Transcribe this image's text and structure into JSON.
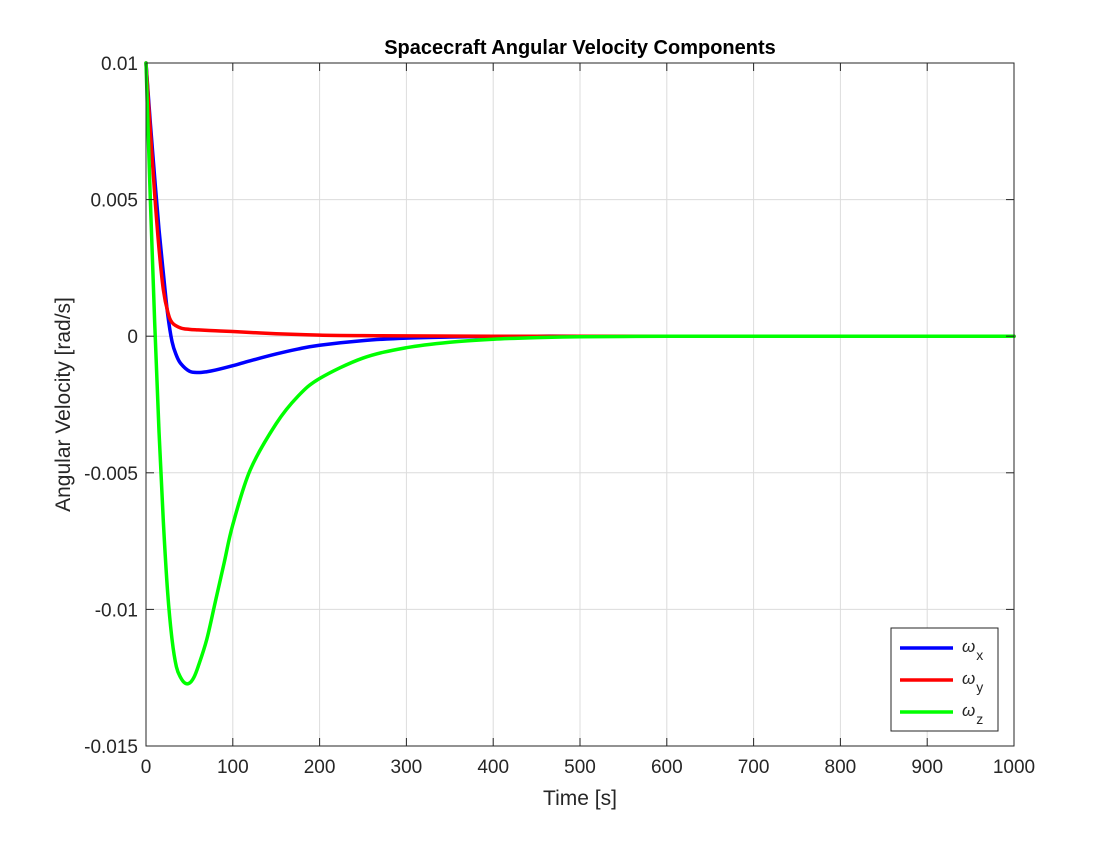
{
  "chart_data": {
    "type": "line",
    "title": "Spacecraft Angular Velocity Components",
    "xlabel": "Time [s]",
    "ylabel": "Angular Velocity [rad/s]",
    "xlim": [
      0,
      1000
    ],
    "ylim": [
      -0.015,
      0.01
    ],
    "x_ticks": [
      0,
      100,
      200,
      300,
      400,
      500,
      600,
      700,
      800,
      900,
      1000
    ],
    "x_tick_labels": [
      "0",
      "100",
      "200",
      "300",
      "400",
      "500",
      "600",
      "700",
      "800",
      "900",
      "1000"
    ],
    "y_ticks": [
      -0.015,
      -0.01,
      -0.005,
      0,
      0.005,
      0.01
    ],
    "y_tick_labels": [
      "-0.015",
      "-0.01",
      "-0.005",
      "0",
      "0.005",
      "0.01"
    ],
    "grid": true,
    "legend_position": "bottom-right",
    "series": [
      {
        "name": "ω",
        "subscript": "x",
        "color": "#0000ff",
        "x": [
          0,
          5,
          10,
          15,
          20,
          25,
          30,
          35,
          40,
          50,
          60,
          70,
          80,
          100,
          120,
          150,
          175,
          200,
          250,
          300,
          350,
          400,
          450,
          500,
          600,
          700,
          800,
          900,
          1000
        ],
        "y": [
          0.01,
          0.0078,
          0.0058,
          0.0039,
          0.0023,
          0.0008,
          -0.0002,
          -0.0007,
          -0.001,
          -0.00128,
          -0.00133,
          -0.0013,
          -0.00124,
          -0.00108,
          -0.0009,
          -0.00065,
          -0.00047,
          -0.00033,
          -0.00016,
          -7e-05,
          -3e-05,
          -1e-05,
          0,
          0,
          0,
          0,
          0,
          0,
          0
        ]
      },
      {
        "name": "ω",
        "subscript": "y",
        "color": "#ff0000",
        "x": [
          0,
          5,
          10,
          15,
          20,
          25,
          30,
          40,
          50,
          60,
          80,
          100,
          150,
          200,
          250,
          300,
          400,
          500,
          600,
          700,
          800,
          900,
          1000
        ],
        "y": [
          0.01,
          0.0075,
          0.0052,
          0.0032,
          0.0017,
          0.0009,
          0.0005,
          0.0003,
          0.00025,
          0.00023,
          0.0002,
          0.00017,
          9e-05,
          4e-05,
          2e-05,
          1e-05,
          0,
          0,
          0,
          0,
          0,
          0,
          0
        ]
      },
      {
        "name": "ω",
        "subscript": "z",
        "color": "#00ff00",
        "x": [
          0,
          5,
          10,
          15,
          20,
          25,
          30,
          35,
          40,
          45,
          50,
          55,
          60,
          70,
          80,
          90,
          100,
          120,
          150,
          175,
          200,
          250,
          300,
          350,
          400,
          450,
          500,
          550,
          600,
          700,
          800,
          900,
          1000
        ],
        "y": [
          0.01,
          0.005,
          0.0005,
          -0.0035,
          -0.0068,
          -0.0094,
          -0.0111,
          -0.0121,
          -0.0125,
          -0.0127,
          -0.0127,
          -0.0125,
          -0.0121,
          -0.0111,
          -0.0097,
          -0.0083,
          -0.0069,
          -0.0049,
          -0.0032,
          -0.0022,
          -0.00155,
          -0.0008,
          -0.00042,
          -0.00022,
          -0.00011,
          -5e-05,
          -2e-05,
          -1e-05,
          0,
          0,
          0,
          0,
          0
        ]
      }
    ]
  }
}
